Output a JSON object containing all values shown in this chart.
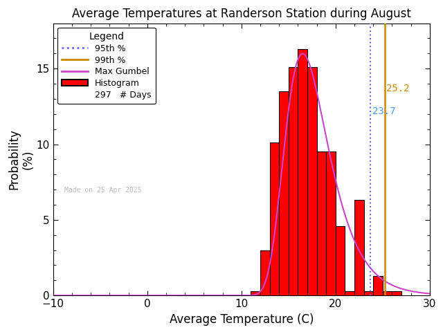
{
  "title": "Average Temperatures at Randerson Station during August",
  "xlabel": "Average Temperature (C)",
  "ylabel1": "Probability",
  "ylabel2": "(%)",
  "xlim": [
    -10,
    30
  ],
  "ylim": [
    0,
    18
  ],
  "yticks": [
    0,
    5,
    10,
    15
  ],
  "xticks": [
    -10,
    0,
    10,
    20,
    30
  ],
  "bin_edges": [
    11,
    12,
    13,
    14,
    15,
    16,
    17,
    18,
    19,
    20,
    21,
    22,
    23,
    24,
    25,
    26
  ],
  "bin_heights": [
    0.3,
    3.0,
    10.1,
    13.5,
    15.1,
    16.3,
    15.1,
    9.5,
    9.5,
    4.6,
    0.3,
    6.3,
    0.3,
    1.3,
    0.3,
    0.3
  ],
  "bar_color": "#ff0000",
  "bar_edgecolor": "#000000",
  "gumbel_mu": 16.5,
  "gumbel_beta": 2.3,
  "p95": 23.7,
  "p99": 25.2,
  "n_days": 297,
  "made_on": "Made on 25 Apr 2025",
  "legend_title": "Legend",
  "bg_color": "#ffffff",
  "line_95_color": "#6666ff",
  "line_99_color": "#cc8800",
  "gumbel_color": "#cc44cc",
  "label_95_color": "#4499ff",
  "label_99_color": "#cc8800"
}
